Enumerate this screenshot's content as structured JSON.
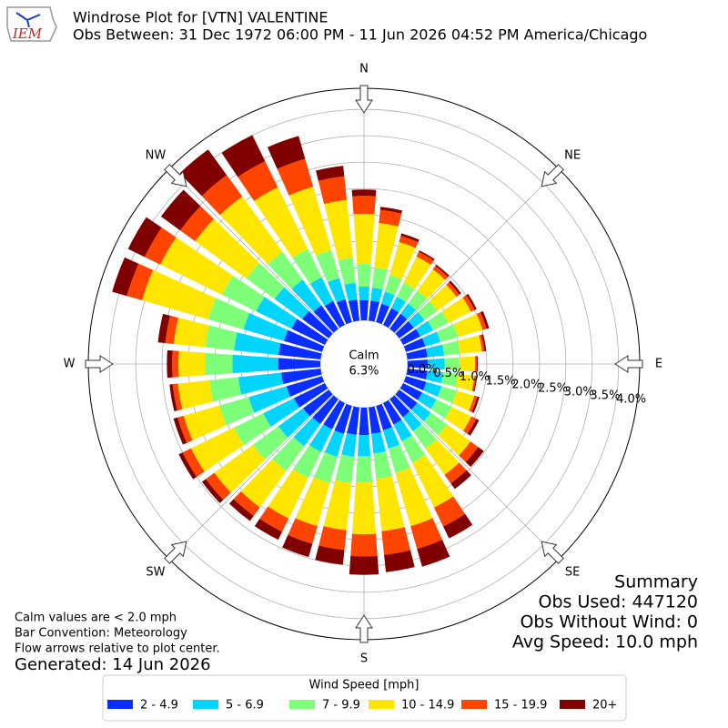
{
  "chart_data": {
    "type": "windrose",
    "title": "Windrose Plot for [VTN] VALENTINE",
    "subtitle": "Obs Between: 31 Dec 1972 06:00 PM - 11 Jun 2026 04:52 PM America/Chicago",
    "logo_text": "IEM",
    "direction_labels": [
      "N",
      "NE",
      "E",
      "SE",
      "S",
      "SW",
      "W",
      "NW"
    ],
    "calm_label": "Calm",
    "calm_value": 6.3,
    "calm_value_label": "6.3%",
    "ylim": [
      0,
      4.4
    ],
    "yticks": [
      {
        "value": 0,
        "label": "0.0%"
      },
      {
        "value": 0.5,
        "label": "0.5%"
      },
      {
        "value": 1,
        "label": "1.0%"
      },
      {
        "value": 1.5,
        "label": "1.5%"
      },
      {
        "value": 2,
        "label": "2.0%"
      },
      {
        "value": 2.5,
        "label": "2.5%"
      },
      {
        "value": 3,
        "label": "3.0%"
      },
      {
        "value": 3.5,
        "label": "3.5%"
      },
      {
        "value": 4,
        "label": "4.0%"
      }
    ],
    "grid": true,
    "directions": [
      0,
      10,
      20,
      30,
      40,
      50,
      60,
      70,
      80,
      90,
      100,
      110,
      120,
      130,
      140,
      150,
      160,
      170,
      180,
      190,
      200,
      210,
      220,
      230,
      240,
      250,
      260,
      270,
      280,
      290,
      300,
      310,
      320,
      330,
      340,
      350
    ],
    "legend_title": "Wind Speed [mph]",
    "series": [
      {
        "name": "2 - 4.9",
        "color": "#0a2eff",
        "values": [
          0.38,
          0.38,
          0.36,
          0.35,
          0.35,
          0.34,
          0.36,
          0.38,
          0.38,
          0.38,
          0.38,
          0.4,
          0.4,
          0.42,
          0.42,
          0.45,
          0.48,
          0.5,
          0.52,
          0.52,
          0.55,
          0.55,
          0.58,
          0.6,
          0.65,
          0.7,
          0.75,
          0.8,
          0.8,
          0.75,
          0.7,
          0.62,
          0.55,
          0.5,
          0.45,
          0.4
        ]
      },
      {
        "name": "5 - 6.9",
        "color": "#00d4ff",
        "values": [
          0.26,
          0.25,
          0.24,
          0.24,
          0.24,
          0.25,
          0.27,
          0.3,
          0.32,
          0.32,
          0.3,
          0.3,
          0.3,
          0.32,
          0.33,
          0.35,
          0.36,
          0.38,
          0.4,
          0.42,
          0.45,
          0.48,
          0.52,
          0.58,
          0.65,
          0.75,
          0.82,
          0.87,
          0.85,
          0.8,
          0.75,
          0.65,
          0.6,
          0.5,
          0.42,
          0.32
        ]
      },
      {
        "name": "7 - 9.9",
        "color": "#7dff7a",
        "values": [
          0.43,
          0.38,
          0.33,
          0.3,
          0.3,
          0.3,
          0.32,
          0.35,
          0.3,
          0.28,
          0.28,
          0.3,
          0.32,
          0.38,
          0.4,
          0.45,
          0.48,
          0.48,
          0.5,
          0.5,
          0.52,
          0.55,
          0.58,
          0.6,
          0.62,
          0.58,
          0.55,
          0.52,
          0.55,
          0.7,
          0.72,
          0.66,
          0.65,
          0.6,
          0.55,
          0.48
        ]
      },
      {
        "name": "10 - 14.9",
        "color": "#ffe600",
        "values": [
          0.95,
          0.85,
          0.65,
          0.55,
          0.5,
          0.45,
          0.48,
          0.48,
          0.42,
          0.3,
          0.32,
          0.35,
          0.42,
          0.55,
          0.62,
          0.95,
          1.05,
          1.0,
          0.98,
          0.9,
          0.85,
          0.85,
          0.85,
          0.9,
          0.9,
          0.7,
          0.6,
          0.5,
          0.6,
          1.3,
          1.3,
          1.2,
          1.3,
          1.3,
          1.25,
          1.1
        ]
      },
      {
        "name": "15 - 19.9",
        "color": "#ff4400",
        "values": [
          0.34,
          0.25,
          0.12,
          0.1,
          0.08,
          0.07,
          0.08,
          0.08,
          0.05,
          0.03,
          0.03,
          0.06,
          0.1,
          0.18,
          0.2,
          0.4,
          0.45,
          0.45,
          0.42,
          0.38,
          0.35,
          0.28,
          0.2,
          0.2,
          0.18,
          0.12,
          0.1,
          0.12,
          0.16,
          0.3,
          0.33,
          0.35,
          0.5,
          0.55,
          0.55,
          0.45
        ]
      },
      {
        "name": "20+",
        "color": "#800000",
        "values": [
          0.12,
          0.06,
          0.05,
          0.03,
          0.03,
          0.04,
          0.04,
          0.05,
          0.03,
          0.02,
          0.02,
          0.04,
          0.06,
          0.13,
          0.13,
          0.25,
          0.35,
          0.33,
          0.35,
          0.28,
          0.26,
          0.17,
          0.12,
          0.09,
          0.08,
          0.08,
          0.06,
          0.1,
          0.14,
          0.29,
          0.35,
          0.45,
          0.6,
          0.55,
          0.45,
          0.2
        ]
      }
    ],
    "notes": [
      "Calm values are < 2.0 mph",
      "Bar Convention: Meteorology",
      "Flow arrows relative to plot center."
    ],
    "generated": "Generated: 14 Jun 2026",
    "summary": [
      "Summary",
      "Obs Used: 447120",
      "Obs Without Wind: 0",
      "Avg Speed: 10.0 mph"
    ]
  }
}
